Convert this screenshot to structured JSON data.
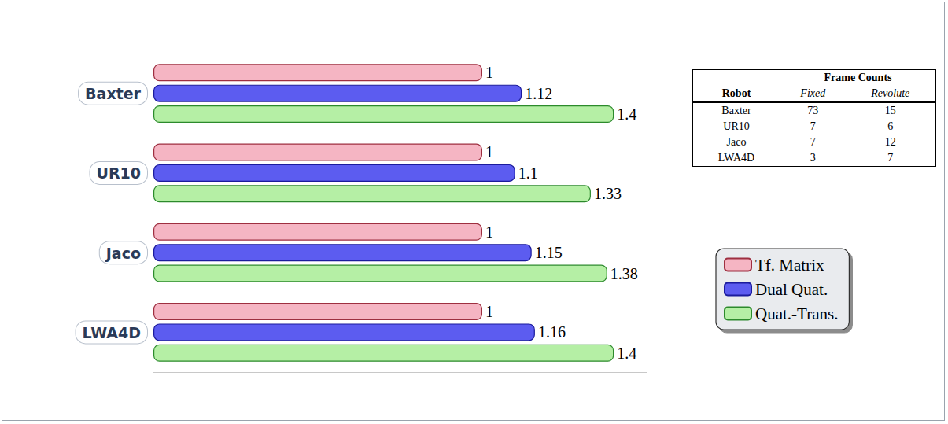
{
  "chart_data": {
    "type": "bar",
    "orientation": "horizontal",
    "categories": [
      "Baxter",
      "UR10",
      "Jaco",
      "LWA4D"
    ],
    "series": [
      {
        "name": "Tf. Matrix",
        "color": "#f5b5c3",
        "values": [
          1,
          1,
          1,
          1
        ]
      },
      {
        "name": "Dual Quat.",
        "color": "#5c5cf0",
        "values": [
          1.12,
          1.1,
          1.15,
          1.16
        ]
      },
      {
        "name": "Quat.-Trans.",
        "color": "#b5efa5",
        "values": [
          1.4,
          1.33,
          1.38,
          1.4
        ]
      }
    ],
    "xlim": [
      0,
      1.5
    ],
    "data_labels": true,
    "tick_labels": false,
    "grid": false,
    "legend": "right"
  },
  "table": {
    "group_header": "Frame Counts",
    "columns": [
      "Robot",
      "Fixed",
      "Revolute"
    ],
    "rows": [
      [
        "Baxter",
        73,
        15
      ],
      [
        "UR10",
        7,
        6
      ],
      [
        "Jaco",
        7,
        12
      ],
      [
        "LWA4D",
        3,
        7
      ]
    ]
  }
}
